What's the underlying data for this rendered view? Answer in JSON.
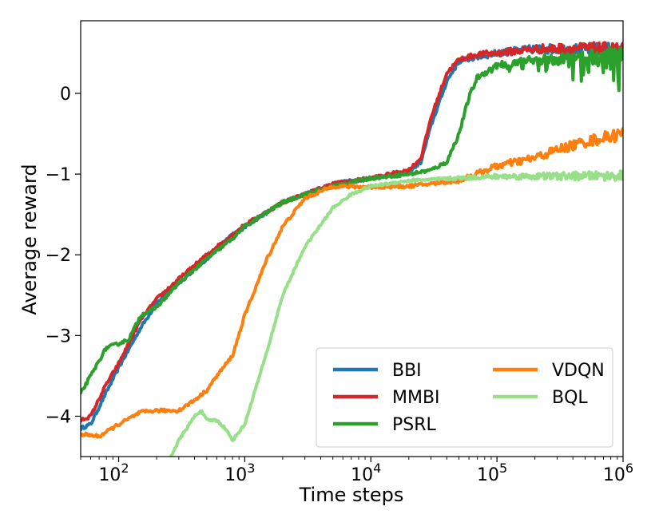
{
  "chart_data": {
    "type": "line",
    "title": "",
    "xlabel": "Time steps",
    "ylabel": "Average reward",
    "xscale": "log",
    "xlim": [
      50,
      1000000
    ],
    "ylim": [
      -4.5,
      0.9
    ],
    "xticks": [
      {
        "value": 100,
        "label": "10",
        "exp": "2"
      },
      {
        "value": 1000,
        "label": "10",
        "exp": "3"
      },
      {
        "value": 10000,
        "label": "10",
        "exp": "4"
      },
      {
        "value": 100000,
        "label": "10",
        "exp": "5"
      },
      {
        "value": 1000000,
        "label": "10",
        "exp": "6"
      }
    ],
    "yticks": [
      {
        "value": 0,
        "label": "0"
      },
      {
        "value": -1,
        "label": "−1"
      },
      {
        "value": -2,
        "label": "−2"
      },
      {
        "value": -3,
        "label": "−3"
      },
      {
        "value": -4,
        "label": "−4"
      }
    ],
    "grid": false,
    "legend": {
      "position": "lower-right",
      "columns": 2
    },
    "series": [
      {
        "name": "BBI",
        "color": "#1f77b4",
        "noise": 0.02,
        "points": [
          [
            50,
            -4.15
          ],
          [
            60,
            -4.1
          ],
          [
            80,
            -3.7
          ],
          [
            100,
            -3.4
          ],
          [
            150,
            -2.9
          ],
          [
            200,
            -2.6
          ],
          [
            300,
            -2.35
          ],
          [
            500,
            -2.05
          ],
          [
            800,
            -1.75
          ],
          [
            1000,
            -1.65
          ],
          [
            2000,
            -1.35
          ],
          [
            3000,
            -1.25
          ],
          [
            5000,
            -1.12
          ],
          [
            10000,
            -1.05
          ],
          [
            20000,
            -0.97
          ],
          [
            25000,
            -0.85
          ],
          [
            30000,
            -0.4
          ],
          [
            40000,
            0.15
          ],
          [
            50000,
            0.4
          ],
          [
            70000,
            0.45
          ],
          [
            100000,
            0.5
          ],
          [
            200000,
            0.55
          ],
          [
            500000,
            0.55
          ],
          [
            1000000,
            0.55
          ]
        ]
      },
      {
        "name": "MMBI",
        "color": "#d62728",
        "noise": 0.02,
        "points": [
          [
            50,
            -4.05
          ],
          [
            60,
            -4.0
          ],
          [
            80,
            -3.6
          ],
          [
            100,
            -3.35
          ],
          [
            150,
            -2.8
          ],
          [
            200,
            -2.55
          ],
          [
            300,
            -2.3
          ],
          [
            500,
            -2.0
          ],
          [
            800,
            -1.75
          ],
          [
            1000,
            -1.63
          ],
          [
            2000,
            -1.35
          ],
          [
            3000,
            -1.25
          ],
          [
            5000,
            -1.12
          ],
          [
            10000,
            -1.05
          ],
          [
            20000,
            -0.95
          ],
          [
            25000,
            -0.8
          ],
          [
            30000,
            -0.3
          ],
          [
            40000,
            0.25
          ],
          [
            50000,
            0.42
          ],
          [
            70000,
            0.48
          ],
          [
            100000,
            0.5
          ],
          [
            200000,
            0.55
          ],
          [
            500000,
            0.56
          ],
          [
            1000000,
            0.55
          ]
        ]
      },
      {
        "name": "PSRL",
        "color": "#2ca02c",
        "noise": 0.02,
        "spikes": true,
        "points": [
          [
            50,
            -3.72
          ],
          [
            60,
            -3.5
          ],
          [
            80,
            -3.15
          ],
          [
            100,
            -3.1
          ],
          [
            120,
            -3.05
          ],
          [
            150,
            -2.75
          ],
          [
            200,
            -2.65
          ],
          [
            300,
            -2.35
          ],
          [
            500,
            -2.05
          ],
          [
            800,
            -1.8
          ],
          [
            1000,
            -1.65
          ],
          [
            2000,
            -1.35
          ],
          [
            3000,
            -1.25
          ],
          [
            5000,
            -1.15
          ],
          [
            10000,
            -1.05
          ],
          [
            20000,
            -1.0
          ],
          [
            30000,
            -0.95
          ],
          [
            40000,
            -0.85
          ],
          [
            50000,
            -0.5
          ],
          [
            60000,
            -0.05
          ],
          [
            70000,
            0.2
          ],
          [
            100000,
            0.35
          ],
          [
            200000,
            0.42
          ],
          [
            500000,
            0.48
          ],
          [
            1000000,
            0.5
          ]
        ]
      },
      {
        "name": "VDQN",
        "color": "#ff7f0e",
        "noise": 0.02,
        "points": [
          [
            50,
            -4.22
          ],
          [
            70,
            -4.25
          ],
          [
            100,
            -4.1
          ],
          [
            150,
            -3.95
          ],
          [
            200,
            -3.93
          ],
          [
            300,
            -3.93
          ],
          [
            400,
            -3.8
          ],
          [
            500,
            -3.68
          ],
          [
            600,
            -3.5
          ],
          [
            800,
            -3.25
          ],
          [
            1000,
            -2.75
          ],
          [
            1500,
            -2.05
          ],
          [
            2000,
            -1.65
          ],
          [
            3000,
            -1.3
          ],
          [
            5000,
            -1.15
          ],
          [
            10000,
            -1.16
          ],
          [
            20000,
            -1.15
          ],
          [
            50000,
            -1.08
          ],
          [
            100000,
            -0.9
          ],
          [
            200000,
            -0.8
          ],
          [
            300000,
            -0.7
          ],
          [
            500000,
            -0.6
          ],
          [
            1000000,
            -0.5
          ]
        ]
      },
      {
        "name": "BQL",
        "color": "#98df8a",
        "noise": 0.015,
        "points": [
          [
            250,
            -4.55
          ],
          [
            300,
            -4.3
          ],
          [
            400,
            -4.0
          ],
          [
            450,
            -3.93
          ],
          [
            500,
            -4.05
          ],
          [
            600,
            -4.05
          ],
          [
            700,
            -4.15
          ],
          [
            800,
            -4.3
          ],
          [
            1000,
            -4.1
          ],
          [
            1500,
            -3.2
          ],
          [
            2000,
            -2.5
          ],
          [
            3000,
            -1.9
          ],
          [
            5000,
            -1.42
          ],
          [
            7000,
            -1.25
          ],
          [
            10000,
            -1.15
          ],
          [
            20000,
            -1.08
          ],
          [
            50000,
            -1.05
          ],
          [
            100000,
            -1.03
          ],
          [
            1000000,
            -1.02
          ]
        ]
      }
    ]
  }
}
